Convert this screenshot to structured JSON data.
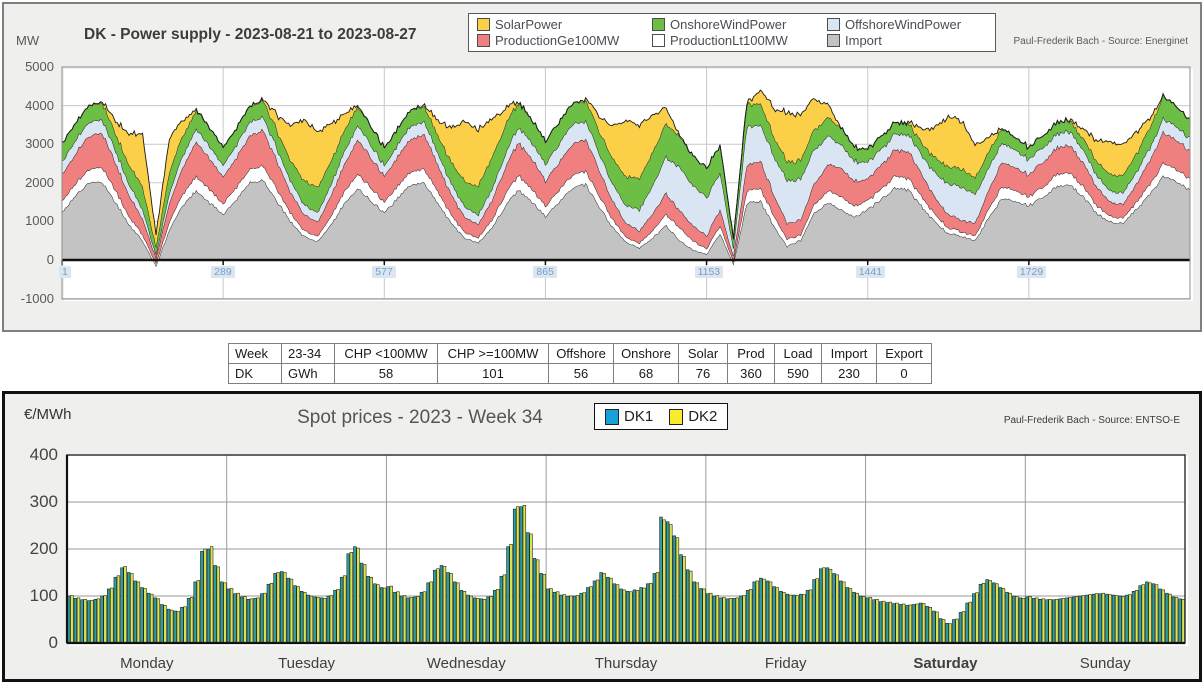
{
  "power_chart": {
    "unit_label": "MW",
    "title": "DK - Power supply - 2023-08-21 to 2023-08-27",
    "source": "Paul-Frederik Bach - Source: Energinet",
    "legend": [
      {
        "label": "SolarPower",
        "color": "#fbcf47"
      },
      {
        "label": "OnshoreWindPower",
        "color": "#6dbe45"
      },
      {
        "label": "OffshoreWindPower",
        "color": "#d9e5f3"
      },
      {
        "label": "ProductionGe100MW",
        "color": "#f08080"
      },
      {
        "label": "ProductionLt100MW",
        "color": "#ffffff"
      },
      {
        "label": "Import",
        "color": "#c3c3c3"
      }
    ]
  },
  "summary_table": {
    "headers": [
      "Week",
      "23-34",
      "CHP <100MW",
      "CHP >=100MW",
      "Offshore",
      "Onshore",
      "Solar",
      "Prod",
      "Load",
      "Import",
      "Export"
    ],
    "rows": [
      [
        "DK",
        "GWh",
        "58",
        "101",
        "56",
        "68",
        "76",
        "360",
        "590",
        "230",
        "0"
      ]
    ]
  },
  "spot_chart": {
    "unit_label": "€/MWh",
    "title": "Spot prices - 2023 - Week 34",
    "source": "Paul-Frederik Bach - Source: ENTSO-E",
    "legend": [
      {
        "label": "DK1",
        "color": "#18a0d8"
      },
      {
        "label": "DK2",
        "color": "#f7ec2e"
      }
    ]
  },
  "chart_data": [
    {
      "type": "area",
      "title": "DK - Power supply - 2023-08-21 to 2023-08-27",
      "x_description": "5-minute intervals over one week, samples below at 2-hour steps",
      "xticks": [
        1,
        289,
        577,
        865,
        1153,
        1441,
        1729
      ],
      "x_total_intervals": 2016,
      "ylabel": "MW",
      "ylim": [
        -1000,
        5000
      ],
      "yticks": [
        -1000,
        0,
        1000,
        2000,
        3000,
        4000,
        5000
      ],
      "grid": true,
      "legend_position": "top",
      "sample_step_hours": 2,
      "series": [
        {
          "name": "Import",
          "color": "#c3c3c3",
          "values": [
            1250,
            1650,
            2000,
            2050,
            1500,
            900,
            500,
            -150,
            800,
            1400,
            1800,
            1500,
            1200,
            1550,
            2000,
            2100,
            1550,
            1000,
            600,
            500,
            900,
            1450,
            1850,
            1550,
            1250,
            1600,
            1950,
            2000,
            1500,
            950,
            550,
            450,
            850,
            1400,
            1800,
            1500,
            1150,
            1500,
            1850,
            1950,
            1400,
            850,
            450,
            300,
            600,
            900,
            500,
            250,
            150,
            700,
            -100,
            1450,
            1550,
            900,
            350,
            500,
            1200,
            1500,
            1300,
            1100,
            1300,
            1600,
            1850,
            1800,
            1400,
            1000,
            700,
            600,
            500,
            1100,
            1600,
            1500,
            1400,
            1650,
            1900,
            1950,
            1650,
            1250,
            1000,
            950,
            1300,
            1700,
            2200,
            2000,
            1800
          ]
        },
        {
          "name": "ProductionLt100MW",
          "color": "#ffffff",
          "values": [
            280,
            320,
            360,
            380,
            300,
            220,
            160,
            60,
            200,
            300,
            380,
            340,
            280,
            320,
            360,
            380,
            300,
            220,
            160,
            140,
            210,
            310,
            390,
            340,
            270,
            310,
            350,
            370,
            290,
            210,
            150,
            140,
            200,
            300,
            380,
            330,
            260,
            300,
            340,
            360,
            280,
            200,
            140,
            130,
            190,
            280,
            330,
            250,
            150,
            200,
            60,
            320,
            340,
            260,
            180,
            160,
            220,
            300,
            340,
            300,
            240,
            270,
            300,
            310,
            260,
            190,
            140,
            120,
            130,
            220,
            300,
            280,
            240,
            270,
            300,
            320,
            270,
            200,
            150,
            140,
            190,
            260,
            330,
            310,
            300
          ]
        },
        {
          "name": "ProductionGe100MW",
          "color": "#f08080",
          "values": [
            700,
            780,
            850,
            880,
            720,
            550,
            400,
            150,
            500,
            700,
            880,
            780,
            700,
            780,
            860,
            900,
            730,
            560,
            410,
            360,
            520,
            720,
            900,
            780,
            680,
            760,
            840,
            870,
            700,
            530,
            390,
            340,
            500,
            700,
            870,
            760,
            650,
            730,
            800,
            830,
            660,
            490,
            360,
            320,
            420,
            550,
            450,
            380,
            330,
            420,
            150,
            650,
            700,
            550,
            420,
            380,
            520,
            680,
            750,
            650,
            550,
            620,
            680,
            700,
            580,
            450,
            350,
            300,
            320,
            480,
            650,
            600,
            560,
            630,
            700,
            730,
            610,
            480,
            380,
            350,
            470,
            620,
            800,
            760,
            720
          ]
        },
        {
          "name": "OffshoreWindPower",
          "color": "#d9e5f3",
          "values": [
            320,
            340,
            360,
            350,
            320,
            280,
            250,
            80,
            260,
            300,
            340,
            330,
            300,
            320,
            350,
            360,
            330,
            290,
            260,
            240,
            290,
            330,
            360,
            340,
            280,
            300,
            330,
            340,
            310,
            280,
            260,
            250,
            300,
            340,
            380,
            420,
            450,
            480,
            500,
            480,
            450,
            430,
            450,
            550,
            750,
            950,
            1100,
            1050,
            1000,
            950,
            200,
            1000,
            950,
            1000,
            1100,
            1050,
            900,
            750,
            600,
            500,
            450,
            420,
            400,
            420,
            500,
            650,
            800,
            850,
            750,
            600,
            500,
            450,
            400,
            380,
            360,
            350,
            330,
            310,
            300,
            290,
            310,
            330,
            360,
            340,
            330
          ]
        },
        {
          "name": "OnshoreWindPower",
          "color": "#6dbe45",
          "values": [
            480,
            460,
            440,
            420,
            450,
            520,
            600,
            200,
            560,
            520,
            490,
            470,
            450,
            430,
            420,
            410,
            450,
            530,
            620,
            650,
            600,
            550,
            500,
            470,
            440,
            420,
            410,
            400,
            450,
            550,
            680,
            750,
            800,
            750,
            650,
            600,
            580,
            560,
            540,
            520,
            560,
            650,
            750,
            820,
            880,
            850,
            800,
            780,
            750,
            700,
            250,
            600,
            550,
            500,
            480,
            500,
            520,
            480,
            430,
            380,
            340,
            320,
            300,
            290,
            320,
            380,
            450,
            480,
            440,
            400,
            360,
            330,
            320,
            300,
            290,
            280,
            300,
            350,
            420,
            460,
            480,
            520,
            560,
            520,
            480
          ]
        },
        {
          "name": "SolarPower",
          "color": "#fbcf47",
          "values": [
            0,
            0,
            0,
            30,
            350,
            800,
            1350,
            300,
            880,
            380,
            20,
            0,
            0,
            0,
            0,
            40,
            400,
            900,
            1550,
            1440,
            1010,
            430,
            30,
            0,
            0,
            0,
            0,
            40,
            400,
            900,
            1550,
            1440,
            1010,
            430,
            30,
            0,
            0,
            0,
            0,
            40,
            380,
            850,
            1450,
            1350,
            940,
            410,
            30,
            0,
            0,
            0,
            0,
            30,
            330,
            750,
            1250,
            1160,
            810,
            350,
            20,
            0,
            0,
            0,
            0,
            30,
            340,
            780,
            1300,
            1210,
            850,
            360,
            20,
            0,
            0,
            0,
            0,
            20,
            220,
            510,
            850,
            790,
            550,
            240,
            10,
            0,
            0
          ]
        }
      ]
    },
    {
      "type": "bar",
      "title": "Spot prices - 2023 - Week 34",
      "ylabel": "€/MWh",
      "ylim": [
        0,
        400
      ],
      "yticks": [
        0,
        100,
        200,
        300,
        400
      ],
      "grid": true,
      "legend_position": "top",
      "categories": [
        "Monday",
        "Tuesday",
        "Wednesday",
        "Thursday",
        "Friday",
        "Saturday",
        "Sunday"
      ],
      "hours_per_category": 24,
      "series": [
        {
          "name": "DK1",
          "legend_color": "#18a0d8",
          "bar_color": "#2a9ea0",
          "values": [
            100,
            95,
            92,
            90,
            93,
            100,
            115,
            140,
            160,
            150,
            132,
            118,
            106,
            96,
            82,
            72,
            68,
            76,
            95,
            130,
            195,
            200,
            165,
            130,
            115,
            105,
            98,
            93,
            95,
            105,
            125,
            148,
            152,
            138,
            122,
            110,
            102,
            98,
            96,
            100,
            112,
            140,
            190,
            205,
            170,
            142,
            126,
            118,
            120,
            108,
            100,
            96,
            98,
            108,
            128,
            155,
            165,
            150,
            130,
            112,
            102,
            96,
            94,
            98,
            112,
            142,
            205,
            285,
            290,
            235,
            180,
            148,
            115,
            108,
            102,
            99,
            100,
            106,
            118,
            132,
            150,
            140,
            126,
            115,
            110,
            113,
            118,
            126,
            148,
            268,
            258,
            228,
            188,
            156,
            130,
            116,
            105,
            100,
            96,
            94,
            95,
            100,
            112,
            130,
            138,
            132,
            120,
            110,
            104,
            102,
            104,
            112,
            135,
            158,
            160,
            148,
            132,
            118,
            108,
            100,
            96,
            92,
            88,
            86,
            84,
            82,
            80,
            82,
            85,
            78,
            68,
            52,
            42,
            50,
            65,
            85,
            105,
            125,
            135,
            128,
            118,
            108,
            100,
            96,
            98,
            95,
            93,
            92,
            92,
            94,
            96,
            98,
            100,
            102,
            104,
            105,
            104,
            102,
            100,
            102,
            110,
            122,
            130,
            126,
            115,
            106,
            98,
            94
          ]
        },
        {
          "name": "DK2",
          "legend_color": "#f7ec2e",
          "bar_color": "#dde24b",
          "values": [
            101,
            96,
            93,
            91,
            94,
            101,
            117,
            143,
            163,
            148,
            130,
            116,
            104,
            94,
            80,
            70,
            67,
            77,
            97,
            133,
            200,
            205,
            162,
            128,
            116,
            106,
            99,
            94,
            96,
            106,
            127,
            150,
            150,
            136,
            120,
            108,
            100,
            97,
            95,
            101,
            114,
            143,
            193,
            202,
            167,
            140,
            124,
            117,
            121,
            109,
            101,
            97,
            99,
            109,
            130,
            158,
            163,
            148,
            128,
            110,
            100,
            95,
            93,
            99,
            114,
            145,
            210,
            290,
            293,
            232,
            177,
            146,
            116,
            109,
            103,
            100,
            101,
            107,
            120,
            134,
            148,
            138,
            124,
            113,
            109,
            112,
            117,
            127,
            150,
            262,
            252,
            224,
            184,
            153,
            128,
            115,
            106,
            101,
            97,
            95,
            96,
            101,
            114,
            132,
            136,
            130,
            118,
            108,
            102,
            101,
            103,
            113,
            137,
            160,
            157,
            145,
            130,
            116,
            106,
            99,
            97,
            93,
            89,
            87,
            85,
            83,
            81,
            83,
            84,
            76,
            66,
            50,
            41,
            51,
            67,
            87,
            107,
            127,
            133,
            126,
            116,
            106,
            99,
            95,
            99,
            96,
            94,
            93,
            93,
            95,
            97,
            99,
            101,
            103,
            105,
            106,
            103,
            101,
            99,
            103,
            112,
            124,
            128,
            124,
            113,
            104,
            97,
            93
          ]
        }
      ]
    }
  ]
}
